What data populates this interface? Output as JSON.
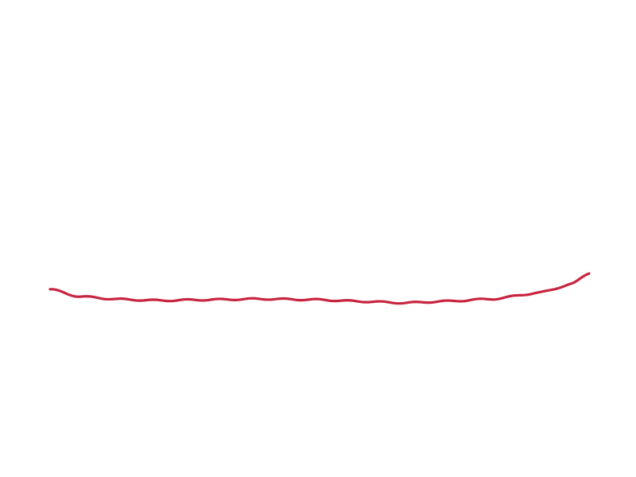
{
  "scene": {
    "background_color": "#ffffff",
    "rope_color": "#c8243f"
  }
}
